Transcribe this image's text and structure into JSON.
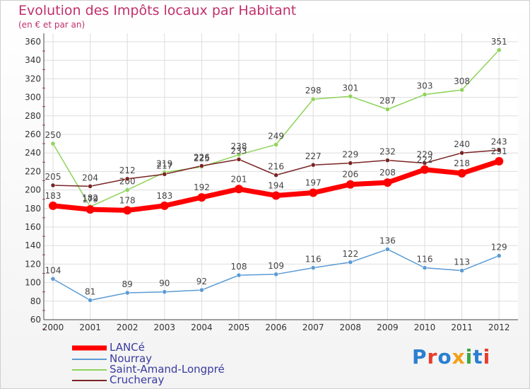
{
  "header": {
    "title": "Evolution des Impôts locaux par Habitant",
    "subtitle": "(en € et par an)"
  },
  "logo": {
    "text": "Proxiti",
    "colors": [
      "#2a7fd0",
      "#e83c2c",
      "#2a7fd0",
      "#f2a11a",
      "#3aa642",
      "#2a7fd0",
      "#e83c2c"
    ]
  },
  "chart_data": {
    "type": "line",
    "x": [
      "2000",
      "2001",
      "2002",
      "2003",
      "2004",
      "2005",
      "2006",
      "2007",
      "2008",
      "2009",
      "2010",
      "2011",
      "2012"
    ],
    "yticks": [
      60,
      80,
      100,
      120,
      140,
      160,
      180,
      200,
      220,
      240,
      260,
      280,
      300,
      320,
      340,
      360
    ],
    "ylim": [
      60,
      360
    ],
    "grid": true,
    "legend_position": "bottom-left",
    "series": [
      {
        "name": "LANCé",
        "color": "#ff0000",
        "emphasis": true,
        "values": [
          183,
          179,
          178,
          183,
          192,
          201,
          194,
          197,
          206,
          208,
          222,
          218,
          231
        ]
      },
      {
        "name": "Nourray",
        "color": "#5b9bd5",
        "values": [
          104,
          81,
          89,
          90,
          92,
          108,
          109,
          116,
          122,
          136,
          116,
          113,
          129
        ]
      },
      {
        "name": "Saint-Amand-Longpré",
        "color": "#8fd35a",
        "values": [
          250,
          182,
          200,
          219,
          225,
          238,
          249,
          298,
          301,
          287,
          303,
          308,
          351
        ]
      },
      {
        "name": "Crucheray",
        "color": "#7a2424",
        "values": [
          205,
          204,
          212,
          217,
          226,
          233,
          216,
          227,
          229,
          232,
          229,
          240,
          243
        ]
      }
    ]
  }
}
